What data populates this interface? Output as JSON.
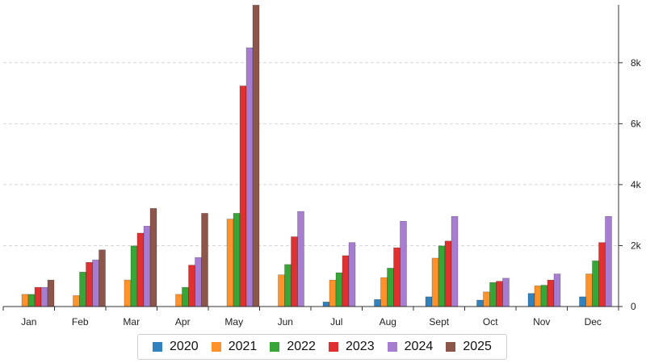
{
  "chart_data": {
    "type": "bar",
    "categories": [
      "Jan",
      "Feb",
      "Mar",
      "Apr",
      "May",
      "Jun",
      "Jul",
      "Aug",
      "Sept",
      "Oct",
      "Nov",
      "Dec"
    ],
    "series": [
      {
        "name": "2020",
        "color": "#3182bd",
        "values": [
          0,
          0,
          0,
          0,
          0,
          0,
          150,
          230,
          320,
          210,
          430,
          320
        ]
      },
      {
        "name": "2021",
        "color": "#ff922b",
        "values": [
          400,
          360,
          870,
          400,
          2870,
          1040,
          870,
          950,
          1590,
          480,
          680,
          1070
        ]
      },
      {
        "name": "2022",
        "color": "#37a537",
        "values": [
          400,
          1130,
          1990,
          630,
          3060,
          1380,
          1110,
          1260,
          1990,
          790,
          700,
          1500
        ]
      },
      {
        "name": "2023",
        "color": "#e03131",
        "values": [
          630,
          1450,
          2410,
          1360,
          7240,
          2290,
          1670,
          1930,
          2150,
          830,
          870,
          2100
        ]
      },
      {
        "name": "2024",
        "color": "#a77dd1",
        "values": [
          630,
          1530,
          2640,
          1610,
          8490,
          3120,
          2100,
          2800,
          2960,
          930,
          1070,
          2960
        ]
      },
      {
        "name": "2025",
        "color": "#8c564b",
        "values": [
          870,
          1860,
          3220,
          3060,
          9890,
          0,
          0,
          0,
          0,
          0,
          0,
          0
        ]
      }
    ],
    "y_ticks": [
      "0",
      "2k",
      "4k",
      "6k",
      "8k"
    ],
    "y_tick_values": [
      0,
      2000,
      4000,
      6000,
      8000
    ],
    "ylim": [
      0,
      9900
    ],
    "grid": true,
    "legend_position": "bottom-center",
    "title": "",
    "xlabel": "",
    "ylabel": ""
  }
}
